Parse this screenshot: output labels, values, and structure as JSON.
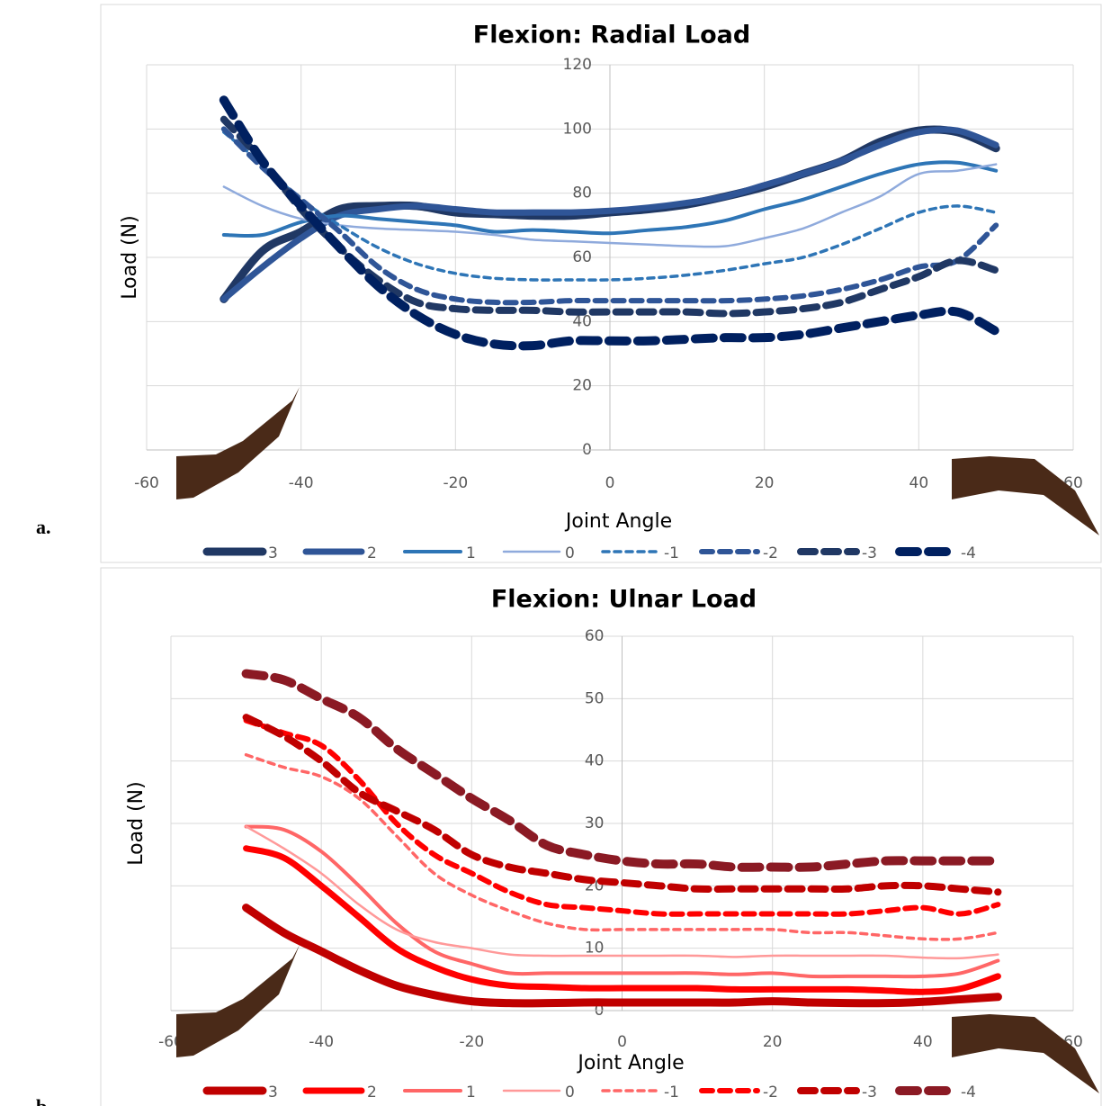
{
  "chart_data": [
    {
      "type": "line",
      "title": "Flexion: Radial Load",
      "panel_label": "a.",
      "x_label": "Joint Angle",
      "y_label": "Load (N)",
      "x": [
        -50,
        -45,
        -40,
        -35,
        -30,
        -25,
        -20,
        -15,
        -10,
        -5,
        0,
        5,
        10,
        15,
        20,
        25,
        30,
        35,
        40,
        45,
        50
      ],
      "xlim": [
        -60,
        60
      ],
      "xticks": [
        -60,
        -40,
        -20,
        0,
        20,
        40,
        60
      ],
      "ylim": [
        0,
        120
      ],
      "yticks": [
        0,
        20,
        40,
        60,
        80,
        100,
        120
      ],
      "grid": true,
      "legend": "bottom",
      "series": [
        {
          "name": "3",
          "color": "#203864",
          "values": [
            47,
            62,
            68,
            75,
            76,
            76,
            74,
            73.5,
            73,
            73,
            74,
            75,
            76.5,
            79,
            82,
            86,
            90,
            96,
            99.5,
            99,
            94
          ]
        },
        {
          "name": "2",
          "color": "#2f5597",
          "values": [
            47,
            57,
            66,
            73,
            75,
            76,
            75,
            74,
            74,
            74,
            74.5,
            75.5,
            77,
            79,
            82.5,
            86,
            90,
            95,
            99,
            99.5,
            95
          ]
        },
        {
          "name": "1",
          "color": "#2e75b6",
          "values": [
            67,
            67,
            71,
            73,
            72,
            71,
            70,
            68,
            68.5,
            68,
            67.5,
            68.5,
            69.5,
            71.5,
            75,
            78,
            82,
            86,
            89,
            89.5,
            87
          ]
        },
        {
          "name": "0",
          "color": "#8faadc",
          "values": [
            82,
            76,
            72,
            70,
            69,
            68.5,
            68,
            67,
            65.5,
            65,
            64.5,
            64,
            63.5,
            63.5,
            66,
            69,
            74,
            79,
            86,
            87,
            89
          ]
        },
        {
          "name": "-1",
          "color": "#2e75b6",
          "values": [
            99,
            89,
            78,
            70,
            63,
            58,
            55,
            53.5,
            53,
            53,
            53,
            53.5,
            54.5,
            56,
            58,
            60,
            64,
            69,
            74,
            76,
            74
          ]
        },
        {
          "name": "-2",
          "color": "#2f5597",
          "values": [
            100,
            88,
            78,
            68,
            57,
            50,
            47,
            46,
            46,
            46.5,
            46.5,
            46.5,
            46.5,
            46.5,
            47,
            48,
            50,
            53,
            57,
            59,
            70
          ]
        },
        {
          "name": "-3",
          "color": "#203864",
          "values": [
            103,
            90,
            75,
            63,
            53,
            46,
            44,
            43.5,
            43.5,
            43,
            43,
            43,
            43,
            42.5,
            43,
            44,
            46,
            50,
            54,
            59,
            56
          ]
        },
        {
          "name": "-4",
          "color": "#002060",
          "values": [
            109,
            90,
            76,
            63,
            51,
            42,
            36,
            33,
            32.5,
            34,
            34,
            34,
            34.5,
            35,
            35,
            36,
            38,
            40,
            42,
            43,
            37
          ]
        }
      ]
    },
    {
      "type": "line",
      "title": "Flexion: Ulnar Load",
      "panel_label": "b.",
      "x_label": "Joint Angle",
      "y_label": "Load (N)",
      "x": [
        -50,
        -45,
        -40,
        -35,
        -30,
        -25,
        -20,
        -15,
        -10,
        -5,
        0,
        5,
        10,
        15,
        20,
        25,
        30,
        35,
        40,
        45,
        50
      ],
      "xlim": [
        -60,
        60
      ],
      "xticks": [
        -60,
        -40,
        -20,
        0,
        20,
        40,
        60
      ],
      "ylim": [
        0,
        60
      ],
      "yticks": [
        0,
        10,
        20,
        30,
        40,
        50,
        60
      ],
      "grid": true,
      "legend": "bottom",
      "series": [
        {
          "name": "3",
          "color": "#c00000",
          "values": [
            16.5,
            12.5,
            9.5,
            6.5,
            4,
            2.5,
            1.5,
            1.2,
            1.2,
            1.3,
            1.3,
            1.3,
            1.3,
            1.3,
            1.5,
            1.3,
            1.2,
            1.2,
            1.4,
            1.8,
            2.2
          ]
        },
        {
          "name": "2",
          "color": "#ff0000",
          "values": [
            26,
            24.5,
            20,
            15,
            10,
            7,
            5,
            4,
            3.8,
            3.6,
            3.6,
            3.6,
            3.6,
            3.4,
            3.4,
            3.4,
            3.4,
            3.2,
            3,
            3.5,
            5.5
          ]
        },
        {
          "name": "1",
          "color": "#ff6666",
          "values": [
            29.5,
            29,
            25.5,
            20,
            14,
            9.5,
            7.5,
            6,
            6,
            6,
            6,
            6,
            6,
            5.8,
            6,
            5.5,
            5.5,
            5.5,
            5.5,
            6,
            8
          ]
        },
        {
          "name": "0",
          "color": "#ff9999",
          "values": [
            29.5,
            26,
            22,
            17,
            13,
            11,
            10,
            9,
            8.8,
            8.8,
            8.8,
            8.8,
            8.8,
            8.6,
            8.8,
            8.8,
            8.8,
            8.8,
            8.5,
            8.4,
            9
          ]
        },
        {
          "name": "-1",
          "color": "#ff6666",
          "values": [
            41,
            39,
            37.5,
            34,
            28,
            22,
            18.5,
            16,
            14,
            13,
            13,
            13,
            13,
            13,
            13,
            12.5,
            12.5,
            12,
            11.5,
            11.5,
            12.5
          ]
        },
        {
          "name": "-2",
          "color": "#ff0000",
          "values": [
            46.5,
            44.5,
            42.5,
            37,
            30,
            25,
            22,
            19,
            17,
            16.5,
            16,
            15.5,
            15.5,
            15.5,
            15.5,
            15.5,
            15.5,
            16,
            16.5,
            15.5,
            17
          ]
        },
        {
          "name": "-3",
          "color": "#c00000",
          "values": [
            47,
            44,
            40,
            35,
            32,
            29,
            25,
            23,
            22,
            21,
            20.5,
            20,
            19.5,
            19.5,
            19.5,
            19.5,
            19.5,
            20,
            20,
            19.5,
            19
          ]
        },
        {
          "name": "-4",
          "color": "#8b1a24",
          "values": [
            54,
            53,
            50,
            47,
            42,
            38,
            34,
            30.5,
            26.5,
            25,
            24,
            23.5,
            23.5,
            23,
            23,
            23,
            23.5,
            24,
            24,
            24,
            24
          ]
        }
      ]
    }
  ]
}
